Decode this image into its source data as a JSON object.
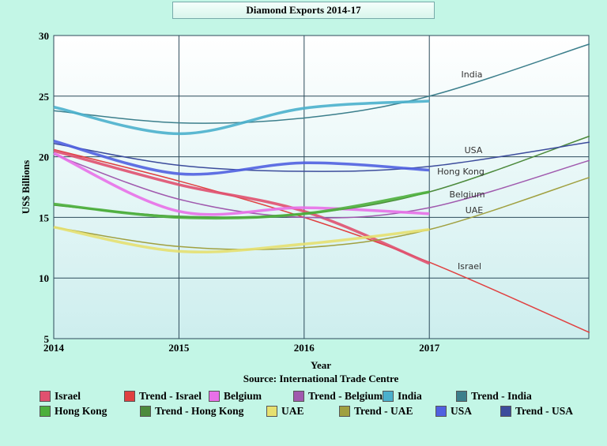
{
  "chart_data": {
    "type": "line",
    "title": "Diamond Exports 2014-17",
    "xlabel": "Year",
    "ylabel": "US$ Billions",
    "source": "Source: International Trade Centre",
    "xlim": [
      2014,
      2018.28
    ],
    "ylim": [
      5,
      30
    ],
    "xticks": [
      "2014",
      "2015",
      "2016",
      "2017"
    ],
    "yticks": [
      "5",
      "10",
      "15",
      "20",
      "25",
      "30"
    ],
    "grid": true,
    "legend_position": "bottom",
    "x": [
      2014,
      2015,
      2016,
      2017
    ],
    "trend_x": [
      2014,
      2015,
      2016,
      2017,
      2018.28
    ],
    "series": [
      {
        "name": "Israel",
        "color": "#e0506f",
        "values": [
          20.5,
          17.7,
          15.5,
          11.2
        ],
        "trend_name": "Trend - Israel",
        "trend_color": "#e04040",
        "trend": [
          20.6,
          18.0,
          15.0,
          11.3,
          5.5
        ],
        "label": "Israel"
      },
      {
        "name": "Belgium",
        "color": "#e870e8",
        "values": [
          20.3,
          15.5,
          15.8,
          15.3
        ],
        "trend_name": "Trend - Belgium",
        "trend_color": "#a05aae",
        "trend": [
          20.2,
          16.5,
          15.0,
          15.8,
          19.7
        ],
        "label": "Belgium"
      },
      {
        "name": "India",
        "color": "#4ab0cc",
        "values": [
          24.1,
          21.9,
          24.0,
          24.6
        ],
        "trend_name": "Trend - India",
        "trend_color": "#3c7f8c",
        "trend": [
          23.8,
          22.8,
          23.2,
          25.0,
          29.3
        ],
        "label": "India"
      },
      {
        "name": "Hong Kong",
        "color": "#4caf3c",
        "values": [
          16.1,
          15.0,
          15.3,
          17.1
        ],
        "trend_name": "Trend - Hong Kong",
        "trend_color": "#4c8a3c",
        "trend": [
          16.0,
          15.1,
          15.3,
          17.1,
          21.7
        ],
        "label": "Hong Kong"
      },
      {
        "name": "UAE",
        "color": "#e6e070",
        "values": [
          14.2,
          12.2,
          12.8,
          14.0
        ],
        "trend_name": "Trend - UAE",
        "trend_color": "#a0a040",
        "trend": [
          14.2,
          12.6,
          12.5,
          14.0,
          18.3
        ],
        "label": "UAE"
      },
      {
        "name": "USA",
        "color": "#5060e0",
        "values": [
          21.3,
          18.6,
          19.5,
          18.9
        ],
        "trend_name": "Trend - USA",
        "trend_color": "#3c4c9c",
        "trend": [
          21.1,
          19.3,
          18.8,
          19.2,
          21.2
        ],
        "label": "USA"
      }
    ]
  }
}
